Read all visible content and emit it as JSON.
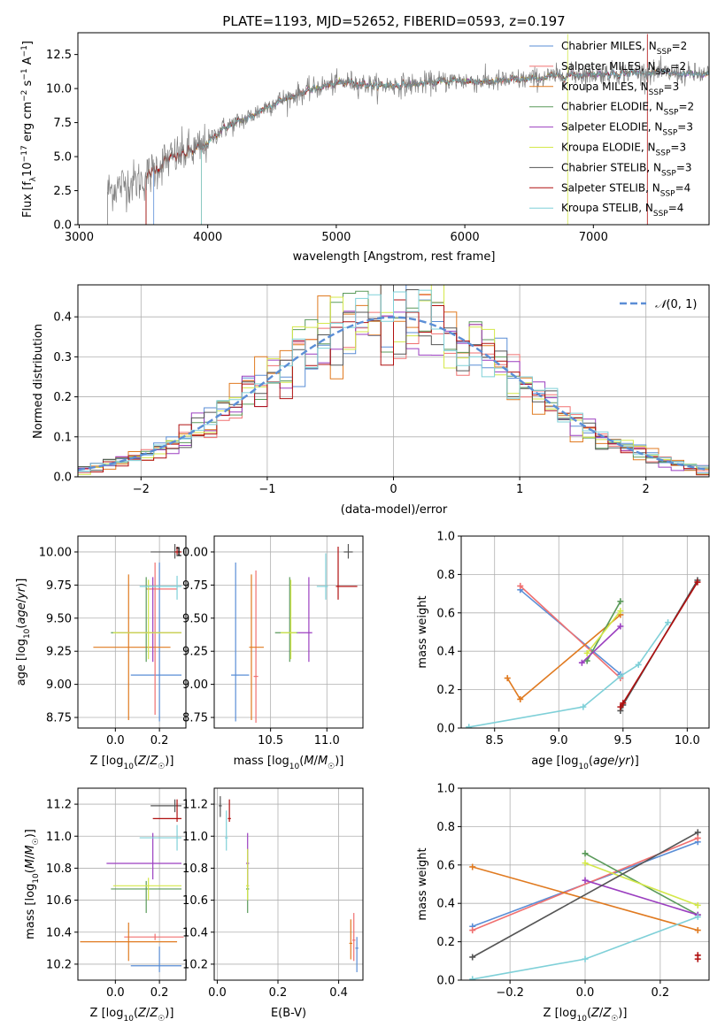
{
  "colors": {
    "chabrier_miles": "#5a8ed6",
    "salpeter_miles": "#f07070",
    "kroupa_miles": "#e07a20",
    "chabrier_elodie": "#5a9a5a",
    "salpeter_elodie": "#9b3fc0",
    "kroupa_elodie": "#d4e84a",
    "chabrier_stelib": "#555555",
    "salpeter_stelib": "#b01010",
    "kroupa_stelib": "#7fd0d8",
    "data_spectrum": "#808080",
    "gaussian": "#5b8ed6",
    "grid": "#b0b0b0"
  },
  "spectrum_panel": {
    "title": "PLATE=1193, MJD=52652, FIBERID=0593, z=0.197",
    "xlabel": "wavelength [Angstrom, rest frame]",
    "ylabel": "Flux [f_λ 10^-17 erg cm^-2 s^-1 A^-1]",
    "xticks": [
      "3000",
      "4000",
      "5000",
      "6000",
      "7000"
    ],
    "yticks": [
      "0.0",
      "2.5",
      "5.0",
      "7.5",
      "10.0",
      "12.5"
    ],
    "legend": [
      "Chabrier MILES, N_SSP=2",
      "Salpeter MILES, N_SSP=2",
      "Kroupa MILES, N_SSP=3",
      "Chabrier ELODIE, N_SSP=2",
      "Salpeter ELODIE, N_SSP=3",
      "Kroupa ELODIE, N_SSP=3",
      "Chabrier STELIB, N_SSP=3",
      "Salpeter STELIB, N_SSP=4",
      "Kroupa STELIB, N_SSP=4"
    ]
  },
  "chart_data": [
    {
      "type": "line",
      "title": "PLATE=1193, MJD=52652, FIBERID=0593, z=0.197",
      "xlabel": "wavelength [Angstrom, rest frame]",
      "ylabel": "Flux [fλ10−17 erg cm−2 s−1 A−1]",
      "xlim": [
        2990,
        7900
      ],
      "ylim": [
        0,
        14.1
      ],
      "continuum_x": [
        3220,
        3350,
        3500,
        3650,
        3800,
        3950,
        4100,
        4300,
        4500,
        4700,
        4900,
        5100,
        5300,
        5600,
        5900,
        6200,
        6500,
        6800,
        7100,
        7400,
        7900
      ],
      "continuum_y": [
        2.5,
        3.0,
        3.3,
        4.6,
        5.2,
        5.6,
        7.0,
        7.8,
        8.9,
        9.6,
        10.2,
        10.5,
        10.2,
        10.3,
        10.6,
        10.5,
        10.7,
        11.0,
        11.1,
        11.2,
        11.0
      ],
      "models_start": [
        3580,
        3950,
        3520,
        3950,
        3950,
        3950,
        3520,
        3520,
        3950
      ],
      "models_end": [
        7900,
        7900,
        7900,
        7900,
        7900,
        6800,
        7900,
        7420,
        7900
      ],
      "legend_position": "upper right"
    },
    {
      "type": "histogram",
      "xlabel": "(data-model)/error",
      "ylabel": "Normed distribution",
      "xlim": [
        -2.5,
        2.5
      ],
      "ylim": [
        0,
        0.48
      ],
      "bin_width": 0.1,
      "legend": [
        "𝒩(0,1)"
      ],
      "legend_position": "upper right"
    },
    {
      "type": "errorbar",
      "xlabel": "Z [log10(Z/Z☉)]",
      "ylabel": "age  [log10(age/yr)]",
      "xlim": [
        -0.17,
        0.32
      ],
      "ylim": [
        8.67,
        10.12
      ],
      "points": [
        {
          "x": 0.2,
          "y": 9.07,
          "xerr": [
            0.13,
            0.1
          ],
          "yerr": [
            0.35,
            0.85
          ]
        },
        {
          "x": 0.18,
          "y": 9.72,
          "xerr": [
            0.04,
            0.1
          ],
          "yerr": [
            0.95,
            0.2
          ]
        },
        {
          "x": 0.06,
          "y": 9.28,
          "xerr": [
            0.16,
            0.19
          ],
          "yerr": [
            0.55,
            0.55
          ]
        },
        {
          "x": 0.14,
          "y": 9.39,
          "xerr": [
            0.16,
            0.16
          ],
          "yerr": [
            0.22,
            0.42
          ]
        },
        {
          "x": 0.17,
          "y": 9.39,
          "xerr": [
            0.16,
            0.13
          ],
          "yerr": [
            0.22,
            0.42
          ]
        },
        {
          "x": 0.15,
          "y": 9.39,
          "xerr": [
            0.16,
            0.15
          ],
          "yerr": [
            0.2,
            0.4
          ]
        },
        {
          "x": 0.27,
          "y": 10.0,
          "xerr": [
            0.11,
            0.03
          ],
          "yerr": [
            0.05,
            0.06
          ]
        },
        {
          "x": 0.28,
          "y": 10.0,
          "xerr": [
            0.01,
            0.02
          ],
          "yerr": [
            0.02,
            0.04
          ]
        },
        {
          "x": 0.28,
          "y": 9.74,
          "xerr": [
            0.17,
            0.02
          ],
          "yerr": [
            0.1,
            0.08
          ]
        }
      ]
    },
    {
      "type": "errorbar",
      "xlabel": "mass [log10(M/M☉)]",
      "ylabel": "",
      "xlim": [
        10.0,
        11.32
      ],
      "ylim": [
        8.67,
        10.12
      ],
      "points": [
        {
          "x": 10.19,
          "y": 9.07,
          "xerr": [
            0.04,
            0.12
          ],
          "yerr": [
            0.35,
            0.85
          ]
        },
        {
          "x": 10.37,
          "y": 9.06,
          "xerr": [
            0.02,
            0.02
          ],
          "yerr": [
            0.35,
            0.8
          ]
        },
        {
          "x": 10.33,
          "y": 9.28,
          "xerr": [
            0.02,
            0.11
          ],
          "yerr": [
            0.55,
            0.55
          ]
        },
        {
          "x": 10.67,
          "y": 9.39,
          "xerr": [
            0.13,
            0.07
          ],
          "yerr": [
            0.22,
            0.42
          ]
        },
        {
          "x": 10.84,
          "y": 9.39,
          "xerr": [
            0.1,
            0.03
          ],
          "yerr": [
            0.22,
            0.42
          ]
        },
        {
          "x": 10.68,
          "y": 9.39,
          "xerr": [
            0.09,
            0.05
          ],
          "yerr": [
            0.2,
            0.4
          ]
        },
        {
          "x": 11.19,
          "y": 10.0,
          "xerr": [
            0.04,
            0.04
          ],
          "yerr": [
            0.05,
            0.06
          ]
        },
        {
          "x": 11.1,
          "y": 9.74,
          "xerr": [
            0.02,
            0.17
          ],
          "yerr": [
            0.1,
            0.3
          ]
        },
        {
          "x": 10.99,
          "y": 9.74,
          "xerr": [
            0.08,
            0.02
          ],
          "yerr": [
            0.1,
            0.25
          ]
        }
      ]
    },
    {
      "type": "line",
      "xlabel": "age  [log10(age/yr)]",
      "ylabel": "mass weight",
      "xlim": [
        8.24,
        10.17
      ],
      "ylim": [
        0,
        1
      ],
      "series": [
        {
          "x": [
            8.7,
            9.48
          ],
          "y": [
            0.72,
            0.28
          ]
        },
        {
          "x": [
            8.7,
            9.48
          ],
          "y": [
            0.74,
            0.26
          ]
        },
        {
          "x": [
            8.6,
            8.7,
            9.48
          ],
          "y": [
            0.26,
            0.15,
            0.59
          ]
        },
        {
          "x": [
            9.22,
            9.48
          ],
          "y": [
            0.35,
            0.66
          ]
        },
        {
          "x": [
            9.18,
            9.48
          ],
          "y": [
            0.34,
            0.53
          ]
        },
        {
          "x": [
            9.22,
            9.48
          ],
          "y": [
            0.39,
            0.61
          ]
        },
        {
          "x": [
            9.48,
            9.5,
            10.08
          ],
          "y": [
            0.09,
            0.12,
            0.77
          ]
        },
        {
          "x": [
            9.48,
            9.5,
            10.08
          ],
          "y": [
            0.11,
            0.13,
            0.76
          ]
        },
        {
          "x": [
            8.3,
            9.19,
            9.48,
            9.62,
            9.85
          ],
          "y": [
            0.005,
            0.11,
            0.27,
            0.33,
            0.55
          ]
        }
      ]
    },
    {
      "type": "errorbar",
      "xlabel": "Z [log10(Z/Z☉)]",
      "ylabel": "mass [log10(M/M☉)]",
      "xlim": [
        -0.17,
        0.32
      ],
      "ylim": [
        10.1,
        11.3
      ],
      "points": [
        {
          "x": 0.2,
          "y": 10.19,
          "xerr": [
            0.13,
            0.1
          ],
          "yerr": [
            0.04,
            0.12
          ]
        },
        {
          "x": 0.18,
          "y": 10.37,
          "xerr": [
            0.14,
            0.13
          ],
          "yerr": [
            0.02,
            0.02
          ]
        },
        {
          "x": 0.06,
          "y": 10.34,
          "xerr": [
            0.22,
            0.22
          ],
          "yerr": [
            0.12,
            0.12
          ]
        },
        {
          "x": 0.14,
          "y": 10.67,
          "xerr": [
            0.16,
            0.16
          ],
          "yerr": [
            0.15,
            0.05
          ]
        },
        {
          "x": 0.17,
          "y": 10.83,
          "xerr": [
            0.21,
            0.13
          ],
          "yerr": [
            0.1,
            0.19
          ]
        },
        {
          "x": 0.15,
          "y": 10.69,
          "xerr": [
            0.16,
            0.15
          ],
          "yerr": [
            0.09,
            0.05
          ]
        },
        {
          "x": 0.27,
          "y": 11.19,
          "xerr": [
            0.11,
            0.03
          ],
          "yerr": [
            0.04,
            0.04
          ]
        },
        {
          "x": 0.28,
          "y": 11.11,
          "xerr": [
            0.11,
            0.02
          ],
          "yerr": [
            0.02,
            0.12
          ]
        },
        {
          "x": 0.28,
          "y": 10.99,
          "xerr": [
            0.17,
            0.02
          ],
          "yerr": [
            0.08,
            0.08
          ]
        }
      ]
    },
    {
      "type": "errorbar",
      "xlabel": "E(B-V)",
      "ylabel": "",
      "xlim": [
        -0.01,
        0.48
      ],
      "ylim": [
        10.1,
        11.3
      ],
      "points": [
        {
          "x": 0.46,
          "y": 10.3,
          "xerr": [
            0.005,
            0.005
          ],
          "yerr": [
            0.15,
            0.07
          ]
        },
        {
          "x": 0.45,
          "y": 10.35,
          "xerr": [
            0.005,
            0.005
          ],
          "yerr": [
            0.13,
            0.17
          ]
        },
        {
          "x": 0.44,
          "y": 10.33,
          "xerr": [
            0.005,
            0.005
          ],
          "yerr": [
            0.1,
            0.15
          ]
        },
        {
          "x": 0.1,
          "y": 10.67,
          "xerr": [
            0.005,
            0.005
          ],
          "yerr": [
            0.15,
            0.25
          ]
        },
        {
          "x": 0.1,
          "y": 10.83,
          "xerr": [
            0.005,
            0.005
          ],
          "yerr": [
            0.15,
            0.19
          ]
        },
        {
          "x": 0.1,
          "y": 10.69,
          "xerr": [
            0.005,
            0.005
          ],
          "yerr": [
            0.09,
            0.23
          ]
        },
        {
          "x": 0.01,
          "y": 11.19,
          "xerr": [
            0.005,
            0.005
          ],
          "yerr": [
            0.07,
            0.06
          ]
        },
        {
          "x": 0.04,
          "y": 11.11,
          "xerr": [
            0.005,
            0.005
          ],
          "yerr": [
            0.02,
            0.12
          ]
        },
        {
          "x": 0.03,
          "y": 10.99,
          "xerr": [
            0.005,
            0.005
          ],
          "yerr": [
            0.08,
            0.17
          ]
        }
      ]
    },
    {
      "type": "line",
      "xlabel": "Z [log10(Z/Z☉)]",
      "ylabel": "mass weight",
      "xlim": [
        -0.33,
        0.33
      ],
      "ylim": [
        0,
        1
      ],
      "series": [
        {
          "x": [
            -0.3,
            0.3
          ],
          "y": [
            0.28,
            0.72
          ]
        },
        {
          "x": [
            -0.3,
            0.3
          ],
          "y": [
            0.26,
            0.74
          ]
        },
        {
          "x": [
            -0.3,
            0.3
          ],
          "y": [
            0.59,
            0.26
          ]
        },
        {
          "x": [
            0.0,
            0.3
          ],
          "y": [
            0.66,
            0.34
          ]
        },
        {
          "x": [
            0.0,
            0.3
          ],
          "y": [
            0.52,
            0.34
          ]
        },
        {
          "x": [
            0.0,
            0.3
          ],
          "y": [
            0.61,
            0.39
          ]
        },
        {
          "x": [
            -0.3,
            0.3
          ],
          "y": [
            0.12,
            0.77
          ]
        },
        {
          "x": [
            0.3,
            0.3
          ],
          "y": [
            0.11,
            0.13
          ]
        },
        {
          "x": [
            -0.3,
            0.0,
            0.3
          ],
          "y": [
            0.005,
            0.11,
            0.33
          ]
        }
      ]
    }
  ]
}
